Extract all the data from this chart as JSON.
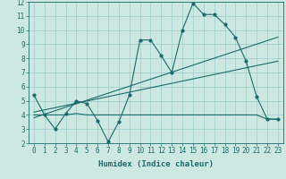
{
  "xlabel": "Humidex (Indice chaleur)",
  "bg_color": "#cce8e0",
  "grid_color": "#99cccc",
  "line_color": "#1a6b6b",
  "xlim": [
    -0.5,
    23.5
  ],
  "ylim": [
    2,
    12
  ],
  "xticks": [
    0,
    1,
    2,
    3,
    4,
    5,
    6,
    7,
    8,
    9,
    10,
    11,
    12,
    13,
    14,
    15,
    16,
    17,
    18,
    19,
    20,
    21,
    22,
    23
  ],
  "yticks": [
    2,
    3,
    4,
    5,
    6,
    7,
    8,
    9,
    10,
    11,
    12
  ],
  "series1_x": [
    0,
    1,
    2,
    3,
    4,
    5,
    6,
    7,
    8,
    9,
    10,
    11,
    12,
    13,
    14,
    15,
    16,
    17,
    18,
    19,
    20,
    21,
    22,
    23
  ],
  "series1_y": [
    5.4,
    4.0,
    3.0,
    4.1,
    5.0,
    4.8,
    3.6,
    2.1,
    3.5,
    5.4,
    9.3,
    9.3,
    8.2,
    7.0,
    10.0,
    11.9,
    11.1,
    11.1,
    10.4,
    9.5,
    7.8,
    5.3,
    3.7,
    3.7
  ],
  "series2_x": [
    0,
    1,
    2,
    3,
    4,
    5,
    6,
    7,
    8,
    9,
    10,
    11,
    12,
    13,
    14,
    15,
    16,
    17,
    18,
    19,
    20,
    21,
    22,
    23
  ],
  "series2_y": [
    4.0,
    4.0,
    4.0,
    4.0,
    4.1,
    4.0,
    4.0,
    4.0,
    4.0,
    4.0,
    4.0,
    4.0,
    4.0,
    4.0,
    4.0,
    4.0,
    4.0,
    4.0,
    4.0,
    4.0,
    4.0,
    4.0,
    3.7,
    3.7
  ],
  "series3_x": [
    0,
    23
  ],
  "series3_y": [
    3.8,
    9.5
  ],
  "series4_x": [
    0,
    23
  ],
  "series4_y": [
    4.2,
    7.8
  ]
}
